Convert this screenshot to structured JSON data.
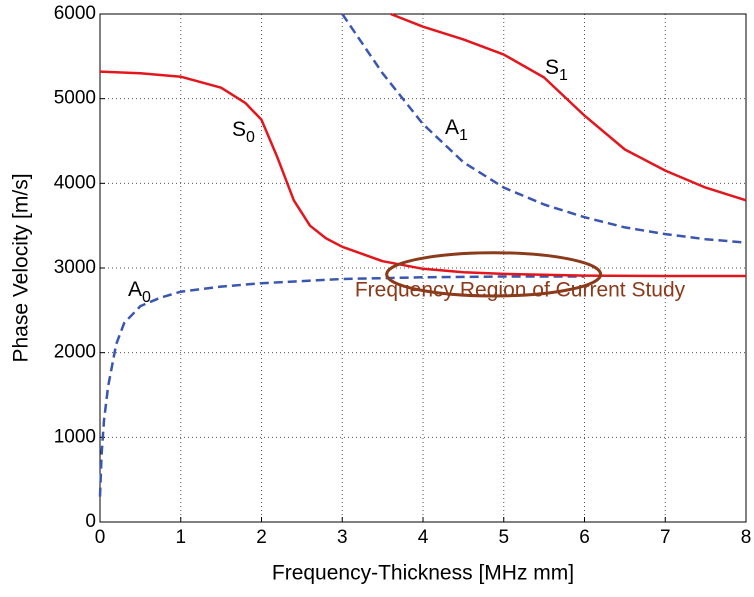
{
  "chart_data": {
    "type": "line",
    "xlabel": "Frequency-Thickness [MHz mm]",
    "ylabel": "Phase Velocity [m/s]",
    "xlim": [
      0,
      8
    ],
    "ylim": [
      0,
      6000
    ],
    "xticks": [
      0,
      1,
      2,
      3,
      4,
      5,
      6,
      7,
      8
    ],
    "yticks": [
      0,
      1000,
      2000,
      3000,
      4000,
      5000,
      6000
    ],
    "grid": true,
    "series": [
      {
        "name": "A",
        "name_sub": "0",
        "color": "#3a56b0",
        "dashed": true,
        "x": [
          0,
          0.02,
          0.05,
          0.1,
          0.2,
          0.3,
          0.5,
          0.75,
          1,
          1.5,
          2,
          3,
          4,
          5,
          6
        ],
        "values": [
          300,
          800,
          1200,
          1600,
          2100,
          2350,
          2550,
          2650,
          2720,
          2780,
          2820,
          2870,
          2890,
          2900,
          2900
        ]
      },
      {
        "name": "A",
        "name_sub": "1",
        "color": "#3a56b0",
        "dashed": true,
        "x": [
          3,
          3.5,
          4,
          4.5,
          5,
          5.5,
          6,
          6.5,
          7,
          7.5,
          8
        ],
        "values": [
          6000,
          5300,
          4700,
          4250,
          3950,
          3750,
          3600,
          3480,
          3400,
          3340,
          3300
        ]
      },
      {
        "name": "S",
        "name_sub": "0",
        "color": "#e3161d",
        "dashed": false,
        "x": [
          0,
          0.5,
          1,
          1.5,
          1.8,
          2,
          2.2,
          2.4,
          2.6,
          2.8,
          3,
          3.5,
          4,
          4.5,
          5,
          6,
          7,
          8
        ],
        "values": [
          5320,
          5300,
          5260,
          5130,
          4950,
          4750,
          4300,
          3800,
          3500,
          3350,
          3250,
          3080,
          2990,
          2950,
          2930,
          2910,
          2905,
          2905
        ]
      },
      {
        "name": "S",
        "name_sub": "1",
        "color": "#e3161d",
        "dashed": false,
        "x": [
          3.6,
          4,
          4.5,
          5,
          5.5,
          6,
          6.5,
          7,
          7.5,
          8
        ],
        "values": [
          6000,
          5850,
          5700,
          5520,
          5250,
          4800,
          4400,
          4150,
          3950,
          3800
        ]
      }
    ],
    "region": {
      "label": "Frequency Region of Current Study",
      "color": "#8b3a1a",
      "xlim": [
        3.55,
        6.2
      ],
      "ylim": [
        2670,
        3180
      ]
    }
  }
}
